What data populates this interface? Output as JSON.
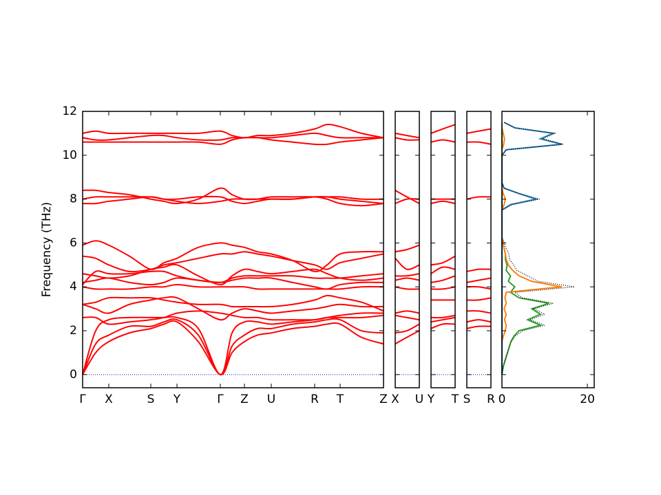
{
  "chart_data": {
    "type": "band_structure",
    "ylabel": "Frequency (THz)",
    "ylim": [
      -0.6,
      12
    ],
    "yticks": [
      0,
      2,
      4,
      6,
      8,
      10,
      12
    ],
    "hline": 0,
    "hline_color": "#0000aa",
    "color": "#ff0000",
    "panels": [
      {
        "xlim": [
          0,
          437
        ],
        "xticks": [
          {
            "value": 0,
            "label": "Γ"
          },
          {
            "value": 38,
            "label": "X"
          },
          {
            "value": 99,
            "label": "S"
          },
          {
            "value": 137,
            "label": "Y"
          },
          {
            "value": 200,
            "label": "Γ"
          },
          {
            "value": 235,
            "label": "Z"
          },
          {
            "value": 274,
            "label": "U"
          },
          {
            "value": 337,
            "label": "R"
          },
          {
            "value": 374,
            "label": "T"
          },
          {
            "value": 437,
            "label": "Z"
          }
        ],
        "x": [
          0,
          19,
          38,
          68,
          99,
          118,
          137,
          168,
          200,
          217,
          235,
          254,
          274,
          305,
          337,
          355,
          374,
          405,
          437
        ],
        "series": [
          {
            "values": [
              0,
              1.0,
              1.5,
              1.9,
              2.1,
              2.3,
              2.4,
              1.5,
              0,
              1.0,
              1.5,
              1.8,
              1.9,
              2.1,
              2.2,
              2.3,
              2.3,
              1.7,
              1.4
            ]
          },
          {
            "values": [
              0,
              1.4,
              1.8,
              2.2,
              2.2,
              2.4,
              2.5,
              1.8,
              0,
              1.3,
              1.8,
              2.1,
              2.1,
              2.3,
              2.4,
              2.5,
              2.5,
              2.0,
              1.9
            ]
          },
          {
            "values": [
              0,
              2.0,
              2.5,
              2.6,
              2.6,
              2.6,
              2.6,
              2.1,
              0,
              1.9,
              2.4,
              2.4,
              2.3,
              2.4,
              2.5,
              2.6,
              2.6,
              2.6,
              2.7
            ]
          },
          {
            "values": [
              2.6,
              2.6,
              2.3,
              2.4,
              2.5,
              2.6,
              2.8,
              2.9,
              2.8,
              2.7,
              2.6,
              2.6,
              2.5,
              2.5,
              2.5,
              2.6,
              2.7,
              2.8,
              2.8
            ]
          },
          {
            "values": [
              3.2,
              3.0,
              2.8,
              3.2,
              3.4,
              3.5,
              3.5,
              3.0,
              2.5,
              2.8,
              3.0,
              2.9,
              2.8,
              2.9,
              3.0,
              3.1,
              3.2,
              3.1,
              3.1
            ]
          },
          {
            "values": [
              3.2,
              3.3,
              3.5,
              3.5,
              3.5,
              3.4,
              3.3,
              3.2,
              3.2,
              3.1,
              3.1,
              3.1,
              3.1,
              3.2,
              3.4,
              3.6,
              3.5,
              3.3,
              2.9
            ]
          },
          {
            "values": [
              4.0,
              3.9,
              3.9,
              3.9,
              4.0,
              4.0,
              4.1,
              4.0,
              4.0,
              4.0,
              4.0,
              3.9,
              3.9,
              3.9,
              3.9,
              3.9,
              3.9,
              4.0,
              4.0
            ]
          },
          {
            "values": [
              4.2,
              4.3,
              4.4,
              4.2,
              4.1,
              4.2,
              4.4,
              4.3,
              4.2,
              4.3,
              4.4,
              4.4,
              4.4,
              4.2,
              4.0,
              3.9,
              4.1,
              4.2,
              4.2
            ]
          },
          {
            "values": [
              4.1,
              4.7,
              4.6,
              4.6,
              4.7,
              4.7,
              4.5,
              4.3,
              4.2,
              4.4,
              4.5,
              4.5,
              4.5,
              4.5,
              4.4,
              4.4,
              4.4,
              4.5,
              4.6
            ]
          },
          {
            "values": [
              4.6,
              4.5,
              4.4,
              4.5,
              4.8,
              4.9,
              5.0,
              4.5,
              4.1,
              4.5,
              4.8,
              4.7,
              4.6,
              4.7,
              4.8,
              4.6,
              4.4,
              4.3,
              4.4
            ]
          },
          {
            "values": [
              5.4,
              5.3,
              5.0,
              4.7,
              4.8,
              5.0,
              5.1,
              5.3,
              5.5,
              5.5,
              5.6,
              5.5,
              5.4,
              5.2,
              5.0,
              4.8,
              5.1,
              5.3,
              5.5
            ]
          },
          {
            "values": [
              5.9,
              6.1,
              5.9,
              5.4,
              4.8,
              5.1,
              5.3,
              5.8,
              6.0,
              5.9,
              5.8,
              5.6,
              5.5,
              5.2,
              4.7,
              5.0,
              5.5,
              5.6,
              5.6
            ]
          },
          {
            "values": [
              7.8,
              7.8,
              7.9,
              8.0,
              8.1,
              8.0,
              7.9,
              7.8,
              7.9,
              8.0,
              8.0,
              8.0,
              8.0,
              8.0,
              8.1,
              8.1,
              8.0,
              7.9,
              7.8
            ]
          },
          {
            "values": [
              8.4,
              8.4,
              8.3,
              8.2,
              8.0,
              7.9,
              7.8,
              8.0,
              8.5,
              8.2,
              8.0,
              8.0,
              8.1,
              8.1,
              8.1,
              8.0,
              7.8,
              7.7,
              7.8
            ]
          },
          {
            "values": [
              8.0,
              8.1,
              8.1,
              8.1,
              8.1,
              8.0,
              8.0,
              8.1,
              8.1,
              7.9,
              7.8,
              7.9,
              8.0,
              8.0,
              8.1,
              8.1,
              8.1,
              8.0,
              8.0
            ]
          },
          {
            "values": [
              10.6,
              10.6,
              10.6,
              10.6,
              10.6,
              10.6,
              10.6,
              10.6,
              10.5,
              10.7,
              10.8,
              10.8,
              10.7,
              10.6,
              10.5,
              10.5,
              10.6,
              10.7,
              10.8
            ]
          },
          {
            "values": [
              10.8,
              10.7,
              10.7,
              10.8,
              10.9,
              10.9,
              10.8,
              10.7,
              10.7,
              10.8,
              10.8,
              10.8,
              10.8,
              10.9,
              11.0,
              10.9,
              10.8,
              10.8,
              10.8
            ]
          },
          {
            "values": [
              11.0,
              11.1,
              11.0,
              11.0,
              11.0,
              11.0,
              11.0,
              11.0,
              11.1,
              10.9,
              10.8,
              10.9,
              10.9,
              11.0,
              11.2,
              11.4,
              11.3,
              11.0,
              10.8
            ]
          }
        ]
      },
      {
        "xlim": [
          0,
          35
        ],
        "xticks": [
          {
            "value": 0,
            "label": "X"
          },
          {
            "value": 35,
            "label": "U"
          }
        ],
        "x": [
          0,
          17,
          35
        ],
        "series": [
          {
            "values": [
              1.4,
              1.7,
              2.0
            ]
          },
          {
            "values": [
              1.9,
              2.0,
              2.3
            ]
          },
          {
            "values": [
              2.7,
              2.6,
              2.5
            ]
          },
          {
            "values": [
              2.8,
              2.9,
              2.8
            ]
          },
          {
            "values": [
              4.0,
              3.9,
              3.9
            ]
          },
          {
            "values": [
              4.3,
              4.4,
              4.3
            ]
          },
          {
            "values": [
              4.5,
              4.5,
              4.6
            ]
          },
          {
            "values": [
              5.3,
              4.8,
              5.0
            ]
          },
          {
            "values": [
              5.6,
              5.7,
              5.9
            ]
          },
          {
            "values": [
              7.8,
              8.0,
              8.0
            ]
          },
          {
            "values": [
              8.4,
              8.1,
              7.8
            ]
          },
          {
            "values": [
              10.8,
              10.7,
              10.7
            ]
          },
          {
            "values": [
              11.0,
              10.9,
              10.8
            ]
          }
        ]
      },
      {
        "xlim": [
          0,
          35
        ],
        "xticks": [
          {
            "value": 0,
            "label": "Y"
          },
          {
            "value": 35,
            "label": "T"
          }
        ],
        "x": [
          0,
          17,
          35
        ],
        "series": [
          {
            "values": [
              2.1,
              2.3,
              2.3
            ]
          },
          {
            "values": [
              2.4,
              2.5,
              2.6
            ]
          },
          {
            "values": [
              2.6,
              2.6,
              2.7
            ]
          },
          {
            "values": [
              3.4,
              3.4,
              3.4
            ]
          },
          {
            "values": [
              3.9,
              3.9,
              4.0
            ]
          },
          {
            "values": [
              4.2,
              4.3,
              4.5
            ]
          },
          {
            "values": [
              4.6,
              4.9,
              4.8
            ]
          },
          {
            "values": [
              5.0,
              5.1,
              5.4
            ]
          },
          {
            "values": [
              7.8,
              7.9,
              7.8
            ]
          },
          {
            "values": [
              8.0,
              8.0,
              8.0
            ]
          },
          {
            "values": [
              10.6,
              10.7,
              10.6
            ]
          },
          {
            "values": [
              11.0,
              11.2,
              11.4
            ]
          }
        ]
      },
      {
        "xlim": [
          0,
          35
        ],
        "xticks": [
          {
            "value": 0,
            "label": "S"
          },
          {
            "value": 35,
            "label": "R"
          }
        ],
        "x": [
          0,
          17,
          35
        ],
        "series": [
          {
            "values": [
              2.1,
              2.2,
              2.2
            ]
          },
          {
            "values": [
              2.4,
              2.5,
              2.4
            ]
          },
          {
            "values": [
              2.9,
              2.9,
              2.8
            ]
          },
          {
            "values": [
              3.4,
              3.4,
              3.5
            ]
          },
          {
            "values": [
              4.0,
              4.0,
              3.9
            ]
          },
          {
            "values": [
              4.2,
              4.3,
              4.4
            ]
          },
          {
            "values": [
              4.7,
              4.8,
              4.8
            ]
          },
          {
            "values": [
              8.0,
              8.1,
              8.1
            ]
          },
          {
            "values": [
              10.6,
              10.6,
              10.5
            ]
          },
          {
            "values": [
              11.0,
              11.1,
              11.2
            ]
          }
        ]
      }
    ],
    "dos": {
      "xlim": [
        0,
        21.6
      ],
      "xticks": [
        0,
        20
      ],
      "y": [
        0,
        0.25,
        0.5,
        0.75,
        1.0,
        1.25,
        1.5,
        1.75,
        2.0,
        2.25,
        2.5,
        2.75,
        3.0,
        3.25,
        3.5,
        3.75,
        4.0,
        4.25,
        4.5,
        4.75,
        5.0,
        5.25,
        5.5,
        5.75,
        6.0,
        6.25,
        6.5,
        6.75,
        7.0,
        7.25,
        7.5,
        7.75,
        8.0,
        8.25,
        8.5,
        8.75,
        9.0,
        9.25,
        9.5,
        9.75,
        10.0,
        10.25,
        10.5,
        10.75,
        11.0,
        11.25,
        11.5
      ],
      "series": [
        {
          "color": "#2ca02c",
          "values": [
            0,
            0.2,
            0.5,
            0.9,
            1.3,
            1.7,
            2.1,
            2.8,
            4,
            9,
            6,
            9,
            7,
            11,
            4,
            2,
            3,
            1.5,
            2,
            1,
            1.2,
            0.8,
            0.8,
            0.5,
            0.3,
            0,
            0,
            0,
            0,
            0,
            0,
            0,
            0,
            0,
            0,
            0,
            0,
            0,
            0,
            0,
            0,
            0,
            0,
            0,
            0,
            0,
            0
          ]
        },
        {
          "color": "#ff7f0e",
          "values": [
            0,
            0,
            0,
            0,
            0,
            0,
            0,
            0.3,
            0.8,
            1,
            0.6,
            1,
            0.5,
            1,
            0.7,
            1,
            14,
            7,
            4,
            2.5,
            1.5,
            1,
            0.8,
            0.5,
            0.3,
            0,
            0,
            0,
            0,
            0,
            0,
            0.5,
            0.8,
            0.3,
            0,
            0,
            0,
            0,
            0,
            0,
            0,
            0,
            0.4,
            0.6,
            0.3,
            0,
            0
          ]
        },
        {
          "color": "#1f77b4",
          "values": [
            0,
            0,
            0,
            0,
            0,
            0,
            0,
            0,
            0,
            0,
            0,
            0,
            0,
            0,
            0,
            0,
            0,
            0,
            0,
            0,
            0,
            0,
            0,
            0,
            0,
            0,
            0,
            0,
            0,
            0,
            0,
            2,
            8,
            4,
            0.5,
            0,
            0,
            0,
            0,
            0,
            0,
            1,
            14,
            9,
            12,
            3,
            0.5
          ]
        },
        {
          "color": "#000000",
          "dotted": true,
          "values": [
            0,
            0.2,
            0.5,
            0.9,
            1.3,
            1.7,
            2.1,
            3.1,
            4.8,
            10,
            6.6,
            10,
            7.5,
            12,
            4.7,
            3,
            17,
            8.5,
            6,
            3.5,
            2.7,
            1.8,
            1.6,
            1,
            0.6,
            0,
            0,
            0,
            0,
            0,
            0,
            2.5,
            8.8,
            4.3,
            0.5,
            0,
            0,
            0,
            0,
            0,
            0,
            1,
            14.4,
            9.6,
            12.3,
            3,
            0.5
          ]
        }
      ]
    }
  }
}
